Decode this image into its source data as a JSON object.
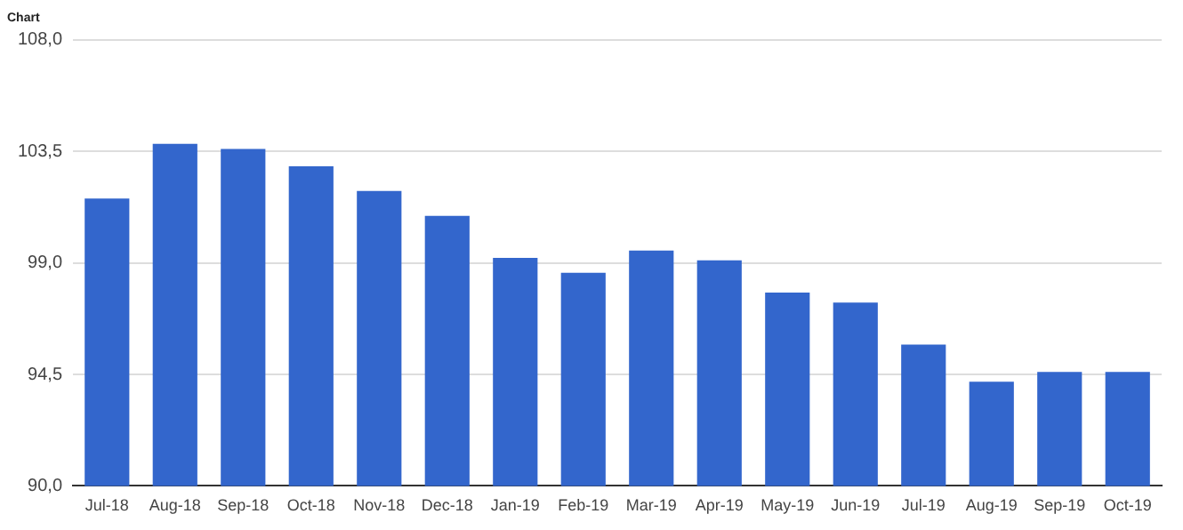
{
  "chart_data": {
    "type": "bar",
    "title": "Chart",
    "categories": [
      "Jul-18",
      "Aug-18",
      "Sep-18",
      "Oct-18",
      "Nov-18",
      "Dec-18",
      "Jan-19",
      "Feb-19",
      "Mar-19",
      "Apr-19",
      "May-19",
      "Jun-19",
      "Jul-19",
      "Aug-19",
      "Sep-19",
      "Oct-19"
    ],
    "values": [
      101.6,
      103.8,
      103.6,
      102.9,
      101.9,
      100.9,
      99.2,
      98.6,
      99.5,
      99.1,
      97.8,
      97.4,
      95.7,
      94.2,
      94.6,
      94.6
    ],
    "color": "#3366cc",
    "ylim": [
      90,
      108
    ],
    "yticks": [
      {
        "value": 90,
        "label": "90,0"
      },
      {
        "value": 94.5,
        "label": "94,5"
      },
      {
        "value": 99,
        "label": "99,0"
      },
      {
        "value": 103.5,
        "label": "103,5"
      },
      {
        "value": 108,
        "label": "108,0"
      }
    ],
    "grid": "y",
    "legend": false
  }
}
